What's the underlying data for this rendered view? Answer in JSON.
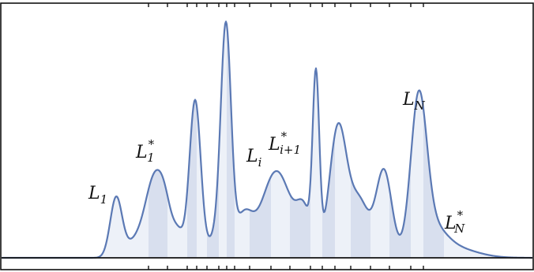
{
  "labels": {
    "L1": {
      "base": "L",
      "sub": "1",
      "sup": ""
    },
    "L1s": {
      "base": "L",
      "sub": "1",
      "sup": "*"
    },
    "Li": {
      "base": "L",
      "sub": "i",
      "sup": ""
    },
    "Lis": {
      "base": "L",
      "sub": "i+1",
      "sup": "*"
    },
    "LN": {
      "base": "L",
      "sub": "N",
      "sup": ""
    },
    "LNs": {
      "base": "L",
      "sub": "N",
      "sup": "*"
    }
  },
  "colors": {
    "curve": "#5b79b4",
    "band": "#c9d4e8",
    "frame": "#111111"
  }
}
